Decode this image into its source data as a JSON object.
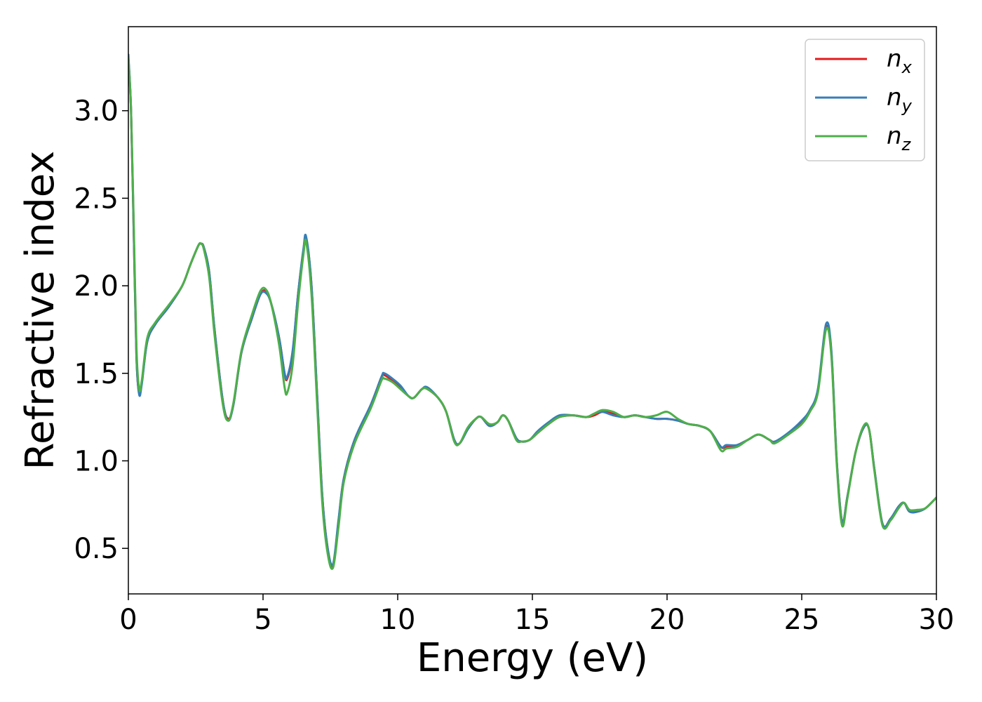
{
  "chart_data": {
    "type": "line",
    "title": "",
    "xlabel": "Energy (eV)",
    "ylabel": "Refractive index",
    "xlim": [
      0,
      30
    ],
    "ylim": [
      0.24,
      3.48
    ],
    "xticks": [
      0,
      5,
      10,
      15,
      20,
      25,
      30
    ],
    "xtick_labels": [
      "0",
      "5",
      "10",
      "15",
      "20",
      "25",
      "30"
    ],
    "yticks": [
      0.5,
      1.0,
      1.5,
      2.0,
      2.5,
      3.0
    ],
    "ytick_labels": [
      "0.5",
      "1.0",
      "1.5",
      "2.0",
      "2.5",
      "3.0"
    ],
    "grid": false,
    "legend_position": "top-right",
    "series": [
      {
        "name": "n",
        "subscript": "x",
        "color": "#e41a1c",
        "x": [
          0,
          0.1,
          0.2,
          0.3,
          0.4,
          0.5,
          0.7,
          1.0,
          1.5,
          2.0,
          2.3,
          2.6,
          2.7,
          2.8,
          3.0,
          3.2,
          3.5,
          3.7,
          3.9,
          4.2,
          4.6,
          4.9,
          5.1,
          5.3,
          5.6,
          5.8,
          5.9,
          6.1,
          6.3,
          6.5,
          6.6,
          6.8,
          7.0,
          7.2,
          7.4,
          7.6,
          7.8,
          8.0,
          8.4,
          9.0,
          9.4,
          9.5,
          9.8,
          10.1,
          10.4,
          10.6,
          10.9,
          11.1,
          11.5,
          11.8,
          12.1,
          12.3,
          12.6,
          12.9,
          13.1,
          13.4,
          13.7,
          13.9,
          14.1,
          14.4,
          14.6,
          14.9,
          15.2,
          15.6,
          16.0,
          16.5,
          17.0,
          17.3,
          17.6,
          18.0,
          18.4,
          18.8,
          19.2,
          19.6,
          20.0,
          20.4,
          20.8,
          21.2,
          21.6,
          22.0,
          22.2,
          22.6,
          23.0,
          23.4,
          23.8,
          24.0,
          24.5,
          25.0,
          25.3,
          25.6,
          25.9,
          26.1,
          26.3,
          26.5,
          26.7,
          27.0,
          27.3,
          27.5,
          27.7,
          28.0,
          28.3,
          28.6,
          28.8,
          29.0,
          29.3,
          29.6,
          30.0
        ],
        "y": [
          3.3,
          3.0,
          2.3,
          1.6,
          1.39,
          1.45,
          1.68,
          1.78,
          1.88,
          2.0,
          2.12,
          2.23,
          2.24,
          2.22,
          2.08,
          1.75,
          1.35,
          1.24,
          1.32,
          1.62,
          1.82,
          1.95,
          1.97,
          1.9,
          1.7,
          1.5,
          1.47,
          1.62,
          1.95,
          2.2,
          2.27,
          2.0,
          1.4,
          0.8,
          0.5,
          0.4,
          0.65,
          0.9,
          1.12,
          1.32,
          1.48,
          1.49,
          1.46,
          1.42,
          1.37,
          1.36,
          1.41,
          1.41,
          1.36,
          1.28,
          1.12,
          1.1,
          1.18,
          1.24,
          1.25,
          1.2,
          1.22,
          1.26,
          1.23,
          1.13,
          1.11,
          1.12,
          1.16,
          1.21,
          1.25,
          1.26,
          1.25,
          1.26,
          1.28,
          1.27,
          1.25,
          1.26,
          1.25,
          1.24,
          1.24,
          1.23,
          1.21,
          1.2,
          1.17,
          1.08,
          1.08,
          1.09,
          1.12,
          1.15,
          1.12,
          1.11,
          1.15,
          1.22,
          1.28,
          1.4,
          1.76,
          1.62,
          1.0,
          0.65,
          0.8,
          1.05,
          1.19,
          1.18,
          0.95,
          0.64,
          0.67,
          0.74,
          0.76,
          0.71,
          0.71,
          0.73,
          0.79
        ]
      },
      {
        "name": "n",
        "subscript": "y",
        "color": "#377eb8",
        "x": [
          0,
          0.1,
          0.2,
          0.3,
          0.4,
          0.5,
          0.7,
          1.0,
          1.5,
          2.0,
          2.3,
          2.6,
          2.7,
          2.8,
          3.0,
          3.2,
          3.5,
          3.7,
          3.9,
          4.2,
          4.6,
          4.9,
          5.1,
          5.3,
          5.6,
          5.8,
          5.9,
          6.1,
          6.3,
          6.5,
          6.6,
          6.8,
          7.0,
          7.2,
          7.4,
          7.6,
          7.8,
          8.0,
          8.4,
          9.0,
          9.4,
          9.5,
          9.8,
          10.1,
          10.4,
          10.6,
          10.9,
          11.1,
          11.5,
          11.8,
          12.1,
          12.3,
          12.6,
          12.9,
          13.1,
          13.4,
          13.7,
          13.9,
          14.1,
          14.4,
          14.6,
          14.9,
          15.2,
          15.6,
          16.0,
          16.5,
          17.0,
          17.3,
          17.6,
          18.0,
          18.4,
          18.8,
          19.2,
          19.6,
          20.0,
          20.4,
          20.8,
          21.2,
          21.6,
          22.0,
          22.2,
          22.6,
          23.0,
          23.4,
          23.8,
          24.0,
          24.5,
          25.0,
          25.3,
          25.6,
          25.9,
          26.1,
          26.3,
          26.5,
          26.7,
          27.0,
          27.3,
          27.5,
          27.7,
          28.0,
          28.3,
          28.6,
          28.8,
          29.0,
          29.3,
          29.6,
          30.0
        ],
        "y": [
          3.32,
          3.0,
          2.3,
          1.6,
          1.38,
          1.44,
          1.68,
          1.78,
          1.88,
          2.0,
          2.12,
          2.23,
          2.24,
          2.22,
          2.08,
          1.75,
          1.35,
          1.23,
          1.32,
          1.62,
          1.82,
          1.95,
          1.96,
          1.9,
          1.7,
          1.5,
          1.48,
          1.63,
          1.95,
          2.21,
          2.28,
          2.0,
          1.4,
          0.8,
          0.5,
          0.41,
          0.66,
          0.9,
          1.12,
          1.32,
          1.48,
          1.5,
          1.47,
          1.43,
          1.37,
          1.36,
          1.41,
          1.42,
          1.36,
          1.28,
          1.12,
          1.1,
          1.18,
          1.24,
          1.25,
          1.2,
          1.22,
          1.26,
          1.23,
          1.13,
          1.11,
          1.12,
          1.17,
          1.22,
          1.26,
          1.26,
          1.25,
          1.27,
          1.28,
          1.26,
          1.25,
          1.26,
          1.25,
          1.24,
          1.24,
          1.23,
          1.21,
          1.2,
          1.17,
          1.08,
          1.09,
          1.09,
          1.12,
          1.15,
          1.12,
          1.11,
          1.16,
          1.23,
          1.29,
          1.41,
          1.78,
          1.63,
          1.0,
          0.65,
          0.8,
          1.05,
          1.19,
          1.18,
          0.95,
          0.64,
          0.67,
          0.74,
          0.76,
          0.71,
          0.71,
          0.73,
          0.79
        ]
      },
      {
        "name": "n",
        "subscript": "z",
        "color": "#4daf4a",
        "x": [
          0,
          0.1,
          0.2,
          0.3,
          0.4,
          0.5,
          0.7,
          1.0,
          1.5,
          2.0,
          2.3,
          2.6,
          2.7,
          2.8,
          3.0,
          3.2,
          3.5,
          3.7,
          3.9,
          4.2,
          4.6,
          4.9,
          5.1,
          5.3,
          5.6,
          5.8,
          5.9,
          6.1,
          6.3,
          6.5,
          6.6,
          6.8,
          7.0,
          7.2,
          7.4,
          7.6,
          7.8,
          8.0,
          8.4,
          9.0,
          9.4,
          9.5,
          9.8,
          10.1,
          10.4,
          10.6,
          10.9,
          11.1,
          11.5,
          11.8,
          12.1,
          12.3,
          12.6,
          12.9,
          13.1,
          13.4,
          13.7,
          13.9,
          14.1,
          14.4,
          14.6,
          14.9,
          15.2,
          15.6,
          16.0,
          16.5,
          17.0,
          17.3,
          17.6,
          18.0,
          18.4,
          18.8,
          19.2,
          19.6,
          20.0,
          20.4,
          20.8,
          21.2,
          21.6,
          22.0,
          22.2,
          22.6,
          23.0,
          23.4,
          23.8,
          24.0,
          24.5,
          25.0,
          25.3,
          25.6,
          25.9,
          26.1,
          26.3,
          26.5,
          26.7,
          27.0,
          27.3,
          27.5,
          27.7,
          28.0,
          28.3,
          28.6,
          28.8,
          29.0,
          29.3,
          29.6,
          30.0
        ],
        "y": [
          3.3,
          3.0,
          2.35,
          1.65,
          1.41,
          1.46,
          1.7,
          1.79,
          1.89,
          2.0,
          2.12,
          2.23,
          2.24,
          2.21,
          2.05,
          1.72,
          1.33,
          1.23,
          1.33,
          1.63,
          1.84,
          1.97,
          1.98,
          1.9,
          1.66,
          1.42,
          1.39,
          1.55,
          1.9,
          2.18,
          2.25,
          1.95,
          1.35,
          0.76,
          0.47,
          0.39,
          0.62,
          0.88,
          1.1,
          1.3,
          1.46,
          1.47,
          1.45,
          1.41,
          1.37,
          1.36,
          1.41,
          1.41,
          1.36,
          1.28,
          1.11,
          1.1,
          1.19,
          1.24,
          1.25,
          1.21,
          1.22,
          1.26,
          1.23,
          1.12,
          1.11,
          1.12,
          1.16,
          1.21,
          1.25,
          1.26,
          1.25,
          1.27,
          1.29,
          1.28,
          1.25,
          1.26,
          1.25,
          1.26,
          1.28,
          1.24,
          1.21,
          1.2,
          1.17,
          1.06,
          1.07,
          1.08,
          1.12,
          1.15,
          1.12,
          1.1,
          1.15,
          1.21,
          1.28,
          1.39,
          1.75,
          1.6,
          0.98,
          0.63,
          0.79,
          1.05,
          1.2,
          1.18,
          0.94,
          0.63,
          0.66,
          0.73,
          0.76,
          0.72,
          0.72,
          0.73,
          0.79
        ]
      }
    ]
  }
}
